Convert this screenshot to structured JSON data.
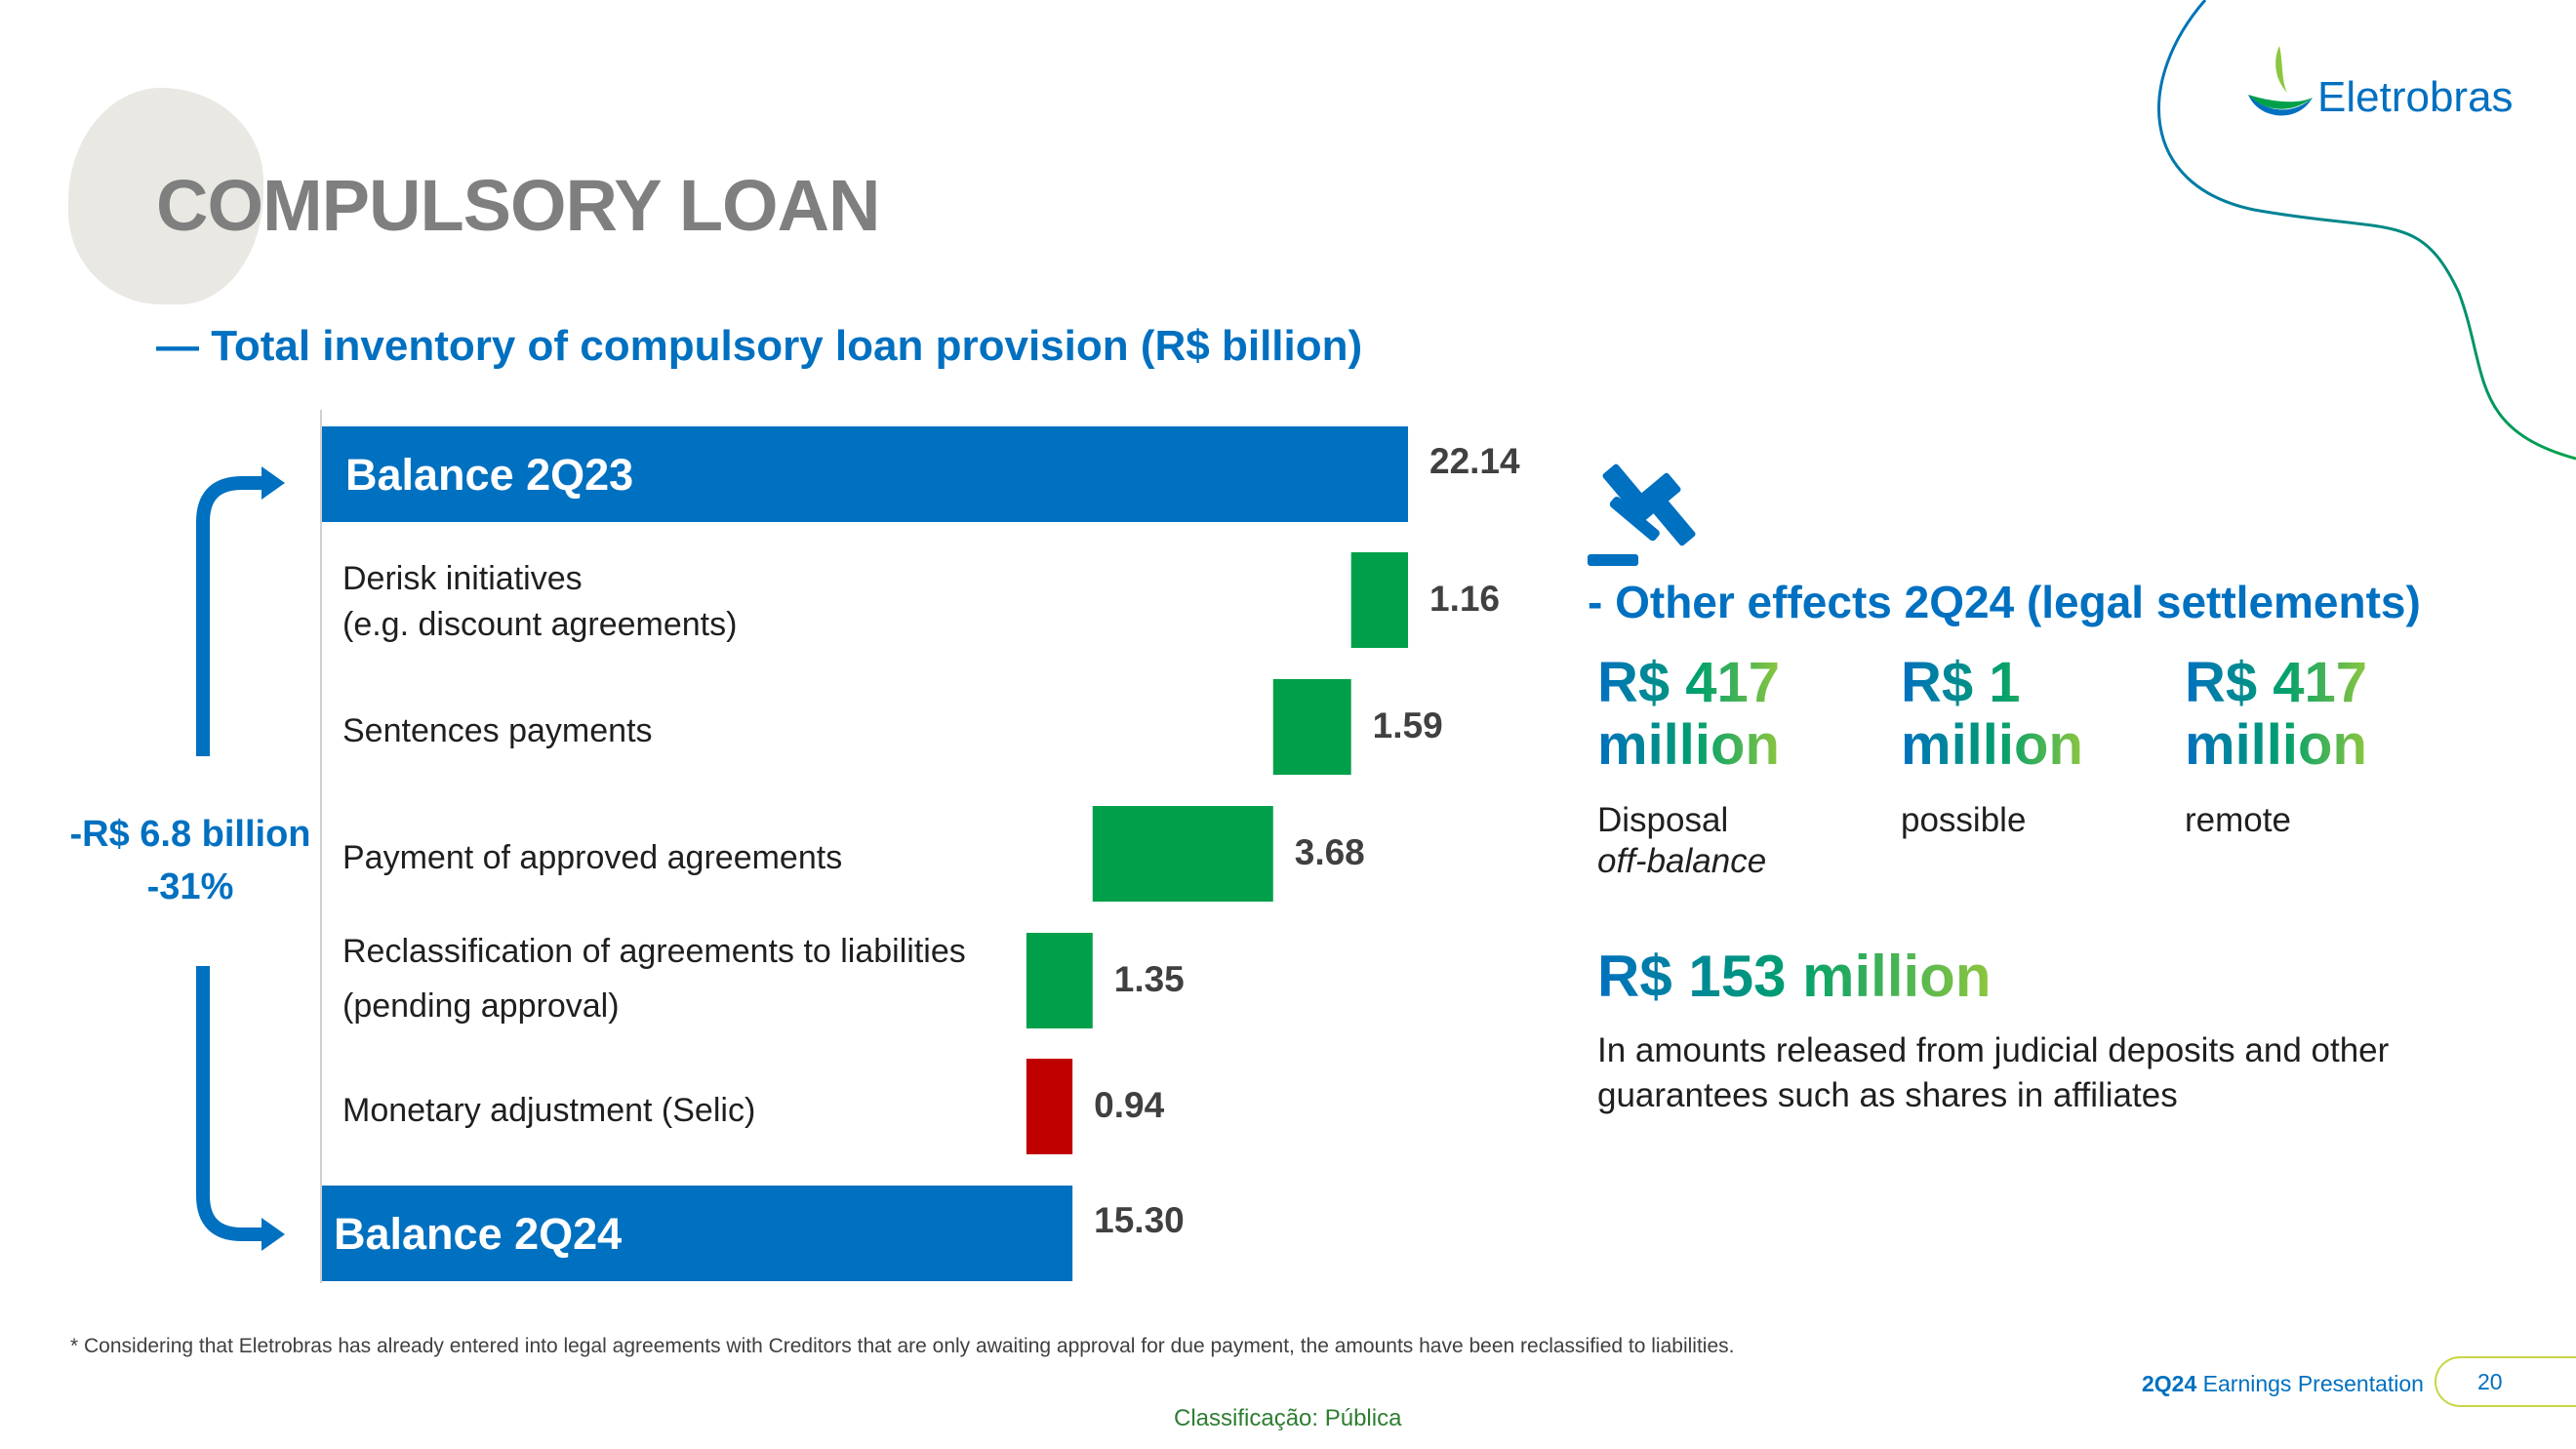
{
  "title": "COMPULSORY LOAN",
  "subtitle": "— Total inventory of compulsory loan provision (R$ billion)",
  "brand": {
    "name": "Eletrobras",
    "colors": {
      "blue": "#0070c0",
      "green": "#00a04a",
      "red": "#c00000",
      "lime": "#8cc63f"
    }
  },
  "chart_data": {
    "type": "bar",
    "subtype": "waterfall",
    "orientation": "horizontal",
    "categories": [
      "Balance 2Q23",
      "Derisk initiatives (e.g. discount agreements)",
      "Sentences payments",
      "Payment of approved agreements",
      "Reclassification of agreements to liabilities (pending approval)",
      "Monetary adjustment (Selic)",
      "Balance 2Q24"
    ],
    "category_lines": [
      [
        "Balance 2Q23"
      ],
      [
        "Derisk initiatives",
        "(e.g. discount agreements)"
      ],
      [
        "Sentences payments"
      ],
      [
        "Payment of approved agreements"
      ],
      [
        "Reclassification of agreements to liabilities",
        "(pending approval)"
      ],
      [
        "Monetary adjustment (Selic)"
      ],
      [
        "Balance 2Q24"
      ]
    ],
    "values": [
      22.14,
      -1.16,
      -1.59,
      -3.68,
      -1.35,
      0.94,
      15.3
    ],
    "value_labels": [
      "22.14",
      "1.16",
      "1.59",
      "3.68",
      "1.35",
      "0.94",
      "15.30"
    ],
    "kinds": [
      "total",
      "decrease",
      "decrease",
      "decrease",
      "decrease",
      "increase",
      "total"
    ],
    "colors": {
      "total": "#0070c0",
      "decrease": "#00a04a",
      "increase": "#c00000"
    },
    "xlim": [
      0,
      22.14
    ],
    "grid": false,
    "legend": false,
    "annotation": [
      "-R$ 6.8 billion",
      "-31%"
    ]
  },
  "other_effects": {
    "heading": "- Other effects 2Q24 (legal settlements)",
    "stats": [
      {
        "amount_line1": "R$ 417",
        "amount_line2": "million",
        "desc": "Disposal",
        "desc_italic": "off-balance"
      },
      {
        "amount_line1": "R$ 1",
        "amount_line2": "million",
        "desc": "possible",
        "desc_italic": ""
      },
      {
        "amount_line1": "R$ 417",
        "amount_line2": "million",
        "desc": "remote",
        "desc_italic": ""
      }
    ],
    "released_amount": "R$ 153 million",
    "released_desc": "In amounts released from judicial deposits and other guarantees such as shares in affiliates"
  },
  "footnote": "* Considering that Eletrobras has already entered into legal agreements with Creditors that are only awaiting approval for due payment, the amounts have been reclassified to liabilities.",
  "footer": {
    "classification": "Classificação: Pública",
    "presentation_bold": "2Q24",
    "presentation_rest": " Earnings Presentation",
    "page": "20"
  },
  "icons": {
    "gavel": "gavel-icon",
    "logo": "eletrobras-logo-icon"
  }
}
